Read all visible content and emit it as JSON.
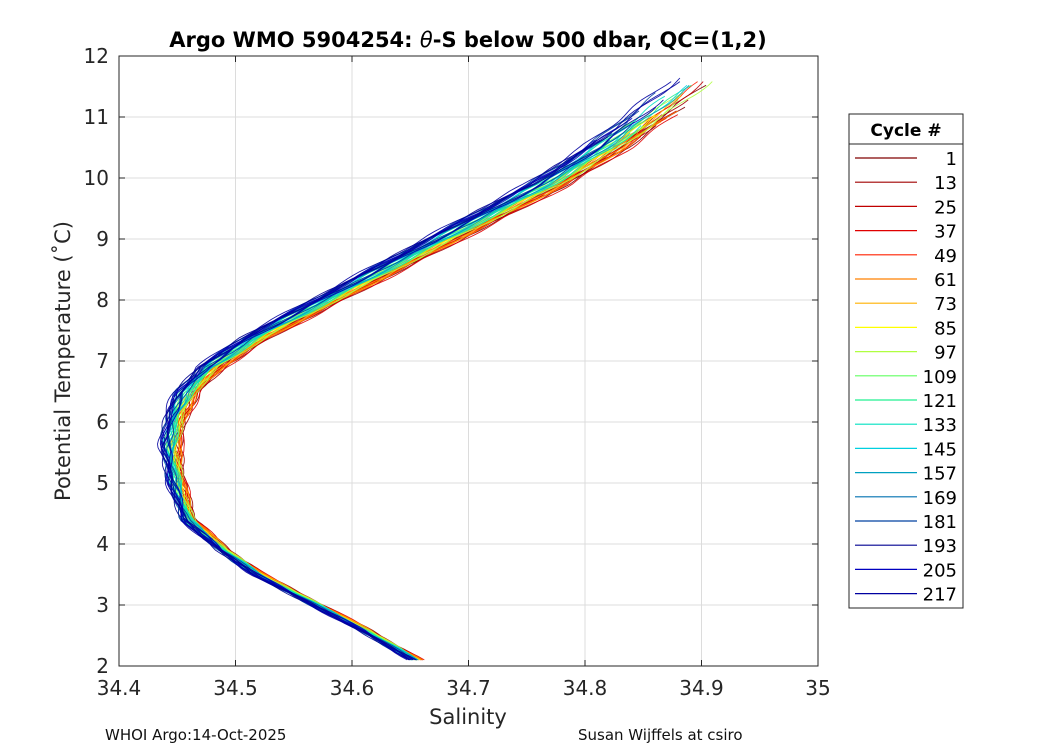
{
  "chart_data": {
    "type": "line",
    "title_prefix": "Argo WMO 5904254: ",
    "title_theta": "θ",
    "title_suffix": "-S below 500 dbar,  QC=(1,2)",
    "xlabel": "Salinity",
    "ylabel": "Potential Temperature (˚C)",
    "xlim": [
      34.4,
      35.0
    ],
    "ylim": [
      2,
      12
    ],
    "xticks": [
      34.4,
      34.5,
      34.6,
      34.7,
      34.8,
      34.9,
      35.0
    ],
    "xtick_labels": [
      "34.4",
      "34.5",
      "34.6",
      "34.7",
      "34.8",
      "34.9",
      "35"
    ],
    "yticks": [
      2,
      3,
      4,
      5,
      6,
      7,
      8,
      9,
      10,
      11,
      12
    ],
    "ytick_labels": [
      "2",
      "3",
      "4",
      "5",
      "6",
      "7",
      "8",
      "9",
      "10",
      "11",
      "12"
    ],
    "grid": true,
    "legend_title": "Cycle #",
    "legend_position": "outside-right",
    "legend": [
      {
        "label": "1",
        "color": "#800000"
      },
      {
        "label": "13",
        "color": "#a00000"
      },
      {
        "label": "25",
        "color": "#c00000"
      },
      {
        "label": "37",
        "color": "#e00000"
      },
      {
        "label": "49",
        "color": "#ff2000"
      },
      {
        "label": "61",
        "color": "#ff8000"
      },
      {
        "label": "73",
        "color": "#ffb000"
      },
      {
        "label": "85",
        "color": "#ffff00"
      },
      {
        "label": "97",
        "color": "#b0ff40"
      },
      {
        "label": "109",
        "color": "#60ff60"
      },
      {
        "label": "121",
        "color": "#20f090"
      },
      {
        "label": "133",
        "color": "#00e0c0"
      },
      {
        "label": "145",
        "color": "#00d0e0"
      },
      {
        "label": "157",
        "color": "#00a0c0"
      },
      {
        "label": "169",
        "color": "#0070b0"
      },
      {
        "label": "181",
        "color": "#0040a0"
      },
      {
        "label": "193",
        "color": "#000090"
      },
      {
        "label": "205",
        "color": "#0000c0"
      },
      {
        "label": "217",
        "color": "#0000a0"
      }
    ],
    "mean_profile": {
      "salinity": [
        34.655,
        34.61,
        34.56,
        34.52,
        34.49,
        34.46,
        34.45,
        34.445,
        34.45,
        34.46,
        34.48,
        34.52,
        34.58,
        34.64,
        34.71,
        34.77,
        34.82,
        34.87
      ],
      "theta": [
        2.1,
        2.6,
        3.1,
        3.5,
        3.9,
        4.4,
        5.0,
        5.6,
        6.1,
        6.5,
        6.9,
        7.4,
        8.0,
        8.6,
        9.3,
        9.9,
        10.5,
        11.2
      ]
    },
    "footer_left": "WHOI Argo:14-Oct-2025",
    "footer_right": "Susan Wijffels at csiro"
  }
}
